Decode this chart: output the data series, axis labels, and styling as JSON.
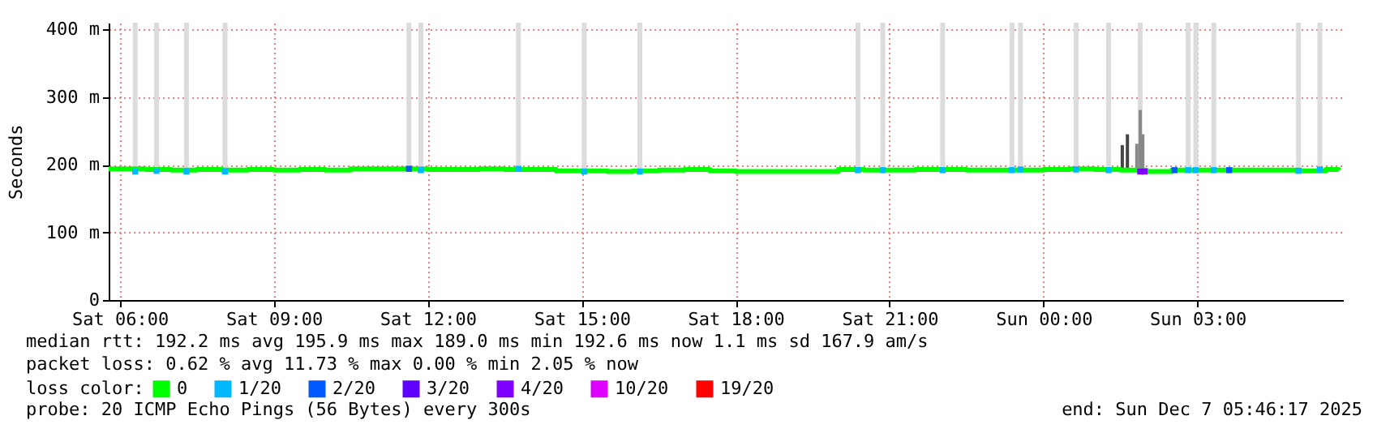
{
  "chart_data": {
    "type": "line",
    "ylabel": "Seconds",
    "legend_title": "loss color:",
    "legend": "bottom",
    "grid": true,
    "xlim": [
      "2025-12-06T05:47",
      "2025-12-07T05:50"
    ],
    "xticks": [
      {
        "value": "2025-12-06T06:00",
        "label": "Sat 06:00"
      },
      {
        "value": "2025-12-06T09:00",
        "label": "Sat 09:00"
      },
      {
        "value": "2025-12-06T12:00",
        "label": "Sat 12:00"
      },
      {
        "value": "2025-12-06T15:00",
        "label": "Sat 15:00"
      },
      {
        "value": "2025-12-06T18:00",
        "label": "Sat 18:00"
      },
      {
        "value": "2025-12-06T21:00",
        "label": "Sat 21:00"
      },
      {
        "value": "2025-12-07T00:00",
        "label": "Sun 00:00"
      },
      {
        "value": "2025-12-07T03:00",
        "label": "Sun 03:00"
      }
    ],
    "ylim": [
      0,
      410
    ],
    "yticks": [
      {
        "value": 0,
        "label": "0"
      },
      {
        "value": 100,
        "label": "100 m"
      },
      {
        "value": 200,
        "label": "200 m"
      },
      {
        "value": 300,
        "label": "300 m"
      },
      {
        "value": 400,
        "label": "400 m"
      }
    ],
    "annotations": [
      "median rtt:  192.2 ms avg  195.9 ms max  189.0 ms min  192.6 ms now  1.1 ms sd  167.9   am/s",
      "packet loss: 0.62 % avg  11.73 % max  0.00 % min  2.05 % now",
      "probe:       20 ICMP Echo Pings (56 Bytes) every 300s",
      "end: Sun Dec  7 05:46:17 2025"
    ],
    "series": [
      {
        "type": "bar",
        "color": "#dcdcdc",
        "x": [
          "2025-12-06T06:18",
          "2025-12-06T06:43",
          "2025-12-06T07:18",
          "2025-12-06T08:03",
          "2025-12-06T11:38",
          "2025-12-06T11:52",
          "2025-12-06T13:46",
          "2025-12-06T15:03",
          "2025-12-06T16:08",
          "2025-12-06T20:23",
          "2025-12-06T20:52",
          "2025-12-06T22:02",
          "2025-12-06T23:23",
          "2025-12-06T23:33",
          "2025-12-07T00:38",
          "2025-12-07T01:16",
          "2025-12-07T01:53",
          "2025-12-07T02:49",
          "2025-12-07T02:58",
          "2025-12-07T03:19",
          "2025-12-07T04:58",
          "2025-12-07T05:23"
        ],
        "base": [
          195,
          195,
          195,
          195,
          195,
          195,
          195,
          195,
          195,
          195,
          195,
          195,
          195,
          195,
          195,
          195,
          195,
          195,
          195,
          195,
          195,
          195
        ],
        "values": [
          215,
          215,
          215,
          215,
          215,
          215,
          215,
          215,
          215,
          215,
          215,
          215,
          215,
          215,
          215,
          215,
          215,
          215,
          215,
          215,
          215,
          215
        ]
      },
      {
        "type": "bar",
        "color": "#888888",
        "x": [
          "2025-12-07T01:49",
          "2025-12-07T01:53",
          "2025-12-07T01:56"
        ],
        "base": [
          195,
          195,
          195
        ],
        "values": [
          36,
          86,
          50
        ]
      },
      {
        "type": "bar",
        "color": "#444444",
        "x": [
          "2025-12-07T01:32",
          "2025-12-07T01:38"
        ],
        "base": [
          195,
          195
        ],
        "values": [
          34,
          50
        ]
      },
      {
        "name": "0",
        "color": "#00ff00",
        "x": [
          "2025-12-06T05:47",
          "2025-12-06T06:00",
          "2025-12-06T06:30",
          "2025-12-06T07:00",
          "2025-12-06T07:30",
          "2025-12-06T08:00",
          "2025-12-06T08:30",
          "2025-12-06T09:00",
          "2025-12-06T09:30",
          "2025-12-06T10:00",
          "2025-12-06T10:30",
          "2025-12-06T11:00",
          "2025-12-06T11:30",
          "2025-12-06T12:00",
          "2025-12-06T12:30",
          "2025-12-06T13:00",
          "2025-12-06T13:30",
          "2025-12-06T14:00",
          "2025-12-06T14:30",
          "2025-12-06T15:00",
          "2025-12-06T15:30",
          "2025-12-06T16:00",
          "2025-12-06T16:30",
          "2025-12-06T17:00",
          "2025-12-06T17:30",
          "2025-12-06T18:00",
          "2025-12-06T18:30",
          "2025-12-06T19:00",
          "2025-12-06T19:30",
          "2025-12-06T20:00",
          "2025-12-06T20:30",
          "2025-12-06T21:00",
          "2025-12-06T21:30",
          "2025-12-06T22:00",
          "2025-12-06T22:30",
          "2025-12-06T23:00",
          "2025-12-06T23:30",
          "2025-12-07T00:00",
          "2025-12-07T00:30",
          "2025-12-07T01:00",
          "2025-12-07T01:30",
          "2025-12-07T02:00",
          "2025-12-07T02:30",
          "2025-12-07T03:00",
          "2025-12-07T03:30",
          "2025-12-07T04:00",
          "2025-12-07T04:30",
          "2025-12-07T05:00",
          "2025-12-07T05:30",
          "2025-12-07T05:45"
        ],
        "values": [
          194,
          194,
          193,
          192,
          193,
          192,
          193,
          192,
          193,
          192,
          194,
          194,
          194,
          193,
          193,
          194,
          193,
          193,
          191,
          191,
          190,
          191,
          192,
          193,
          191,
          190,
          190,
          190,
          190,
          193,
          192,
          192,
          193,
          193,
          192,
          192,
          192,
          193,
          194,
          193,
          192,
          190,
          192,
          192,
          192,
          192,
          192,
          191,
          193,
          192
        ]
      },
      {
        "name": "1/20",
        "type": "scatter",
        "marker": "square",
        "color": "#00b8ff",
        "x": [
          "2025-12-06T06:18",
          "2025-12-06T06:43",
          "2025-12-06T07:18",
          "2025-12-06T08:03",
          "2025-12-06T11:52",
          "2025-12-06T13:46",
          "2025-12-06T15:03",
          "2025-12-06T16:08",
          "2025-12-06T20:23",
          "2025-12-06T20:52",
          "2025-12-06T22:02",
          "2025-12-06T23:23",
          "2025-12-06T23:33",
          "2025-12-07T00:38",
          "2025-12-07T01:16",
          "2025-12-07T02:49",
          "2025-12-07T02:58",
          "2025-12-07T03:19",
          "2025-12-07T04:58",
          "2025-12-07T05:23"
        ],
        "values": [
          190,
          191,
          190,
          190,
          192,
          194,
          190,
          190,
          192,
          192,
          192,
          192,
          193,
          193,
          192,
          192,
          192,
          192,
          191,
          193
        ]
      },
      {
        "name": "2/20",
        "type": "scatter",
        "marker": "square",
        "color": "#0059ff",
        "x": [
          "2025-12-06T11:38",
          "2025-12-07T02:33",
          "2025-12-07T03:37"
        ],
        "values": [
          194,
          192,
          192
        ]
      },
      {
        "name": "3/20",
        "type": "scatter",
        "marker": "square",
        "color": "#5e00ff"
      },
      {
        "name": "4/20",
        "type": "scatter",
        "marker": "square",
        "color": "#7e00ff",
        "x": [
          "2025-12-07T01:53",
          "2025-12-07T01:58"
        ],
        "values": [
          190,
          190
        ]
      },
      {
        "name": "10/20",
        "type": "scatter",
        "marker": "square",
        "color": "#dd00ff"
      },
      {
        "name": "19/20",
        "type": "scatter",
        "marker": "square",
        "color": "#ff0000"
      }
    ]
  }
}
